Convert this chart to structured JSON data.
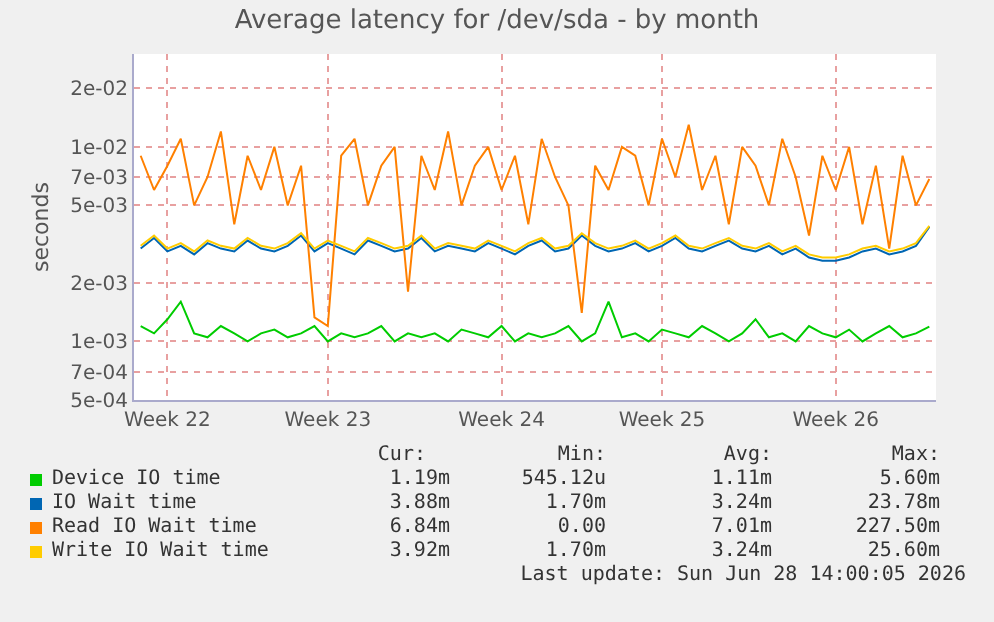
{
  "chart_data": {
    "type": "line",
    "title": "Average latency for /dev/sda - by month",
    "ylabel": "seconds",
    "log": "y",
    "grid": true,
    "line_style": "solid",
    "legend": "bottom",
    "categories": [
      null,
      null,
      "Week 22",
      null,
      null,
      null,
      null,
      null,
      null,
      null,
      null,
      null,
      null,
      null,
      "Week 23",
      null,
      null,
      null,
      null,
      null,
      null,
      null,
      null,
      null,
      null,
      null,
      null,
      "Week 24",
      null,
      null,
      null,
      null,
      null,
      null,
      null,
      null,
      null,
      null,
      null,
      "Week 25",
      null,
      null,
      null,
      null,
      null,
      null,
      null,
      null,
      null,
      null,
      null,
      null,
      "Week 26",
      null,
      null,
      null,
      null,
      null,
      null,
      null
    ],
    "ylim": [
      0.0005,
      0.03
    ],
    "yticks": [
      {
        "value": 0.0005,
        "label": "5e-04"
      },
      {
        "value": 0.0007,
        "label": "7e-04"
      },
      {
        "value": 0.001,
        "label": "1e-03"
      },
      {
        "value": 0.002,
        "label": "2e-03"
      },
      {
        "value": 0.005,
        "label": "5e-03"
      },
      {
        "value": 0.007,
        "label": "7e-03"
      },
      {
        "value": 0.01,
        "label": "1e-02"
      },
      {
        "value": 0.02,
        "label": "2e-02"
      }
    ],
    "series": [
      {
        "name": "Device IO time",
        "color": "#00cc00",
        "values": [
          0.0012,
          0.0011,
          0.0013,
          0.0016,
          0.0011,
          0.00105,
          0.0012,
          0.0011,
          0.001,
          0.0011,
          0.00115,
          0.00105,
          0.0011,
          0.0012,
          0.001,
          0.0011,
          0.00105,
          0.0011,
          0.0012,
          0.001,
          0.0011,
          0.00105,
          0.0011,
          0.001,
          0.00115,
          0.0011,
          0.00105,
          0.0012,
          0.001,
          0.0011,
          0.00105,
          0.0011,
          0.0012,
          0.001,
          0.0011,
          0.0016,
          0.00105,
          0.0011,
          0.001,
          0.00115,
          0.0011,
          0.00105,
          0.0012,
          0.0011,
          0.001,
          0.0011,
          0.0013,
          0.00105,
          0.0011,
          0.001,
          0.0012,
          0.0011,
          0.00105,
          0.00115,
          0.001,
          0.0011,
          0.0012,
          0.00105,
          0.0011,
          0.00119
        ]
      },
      {
        "name": "IO Wait time",
        "color": "#0066b3",
        "values": [
          0.003,
          0.0034,
          0.0029,
          0.0031,
          0.0028,
          0.0032,
          0.003,
          0.0029,
          0.0033,
          0.003,
          0.0029,
          0.0031,
          0.0035,
          0.0029,
          0.0032,
          0.003,
          0.0028,
          0.0033,
          0.0031,
          0.0029,
          0.003,
          0.0034,
          0.0029,
          0.0031,
          0.003,
          0.0029,
          0.0032,
          0.003,
          0.0028,
          0.0031,
          0.0033,
          0.0029,
          0.003,
          0.0035,
          0.0031,
          0.0029,
          0.003,
          0.0032,
          0.0029,
          0.0031,
          0.0034,
          0.003,
          0.0029,
          0.0031,
          0.0033,
          0.003,
          0.0029,
          0.0031,
          0.0028,
          0.003,
          0.0027,
          0.0026,
          0.0026,
          0.0027,
          0.0029,
          0.003,
          0.0028,
          0.0029,
          0.0031,
          0.00388
        ]
      },
      {
        "name": "Read IO Wait time",
        "color": "#ff8000",
        "values": [
          0.009,
          0.006,
          0.008,
          0.011,
          0.005,
          0.007,
          0.012,
          0.004,
          0.009,
          0.006,
          0.01,
          0.005,
          0.008,
          0.00133,
          0.0012,
          0.009,
          0.011,
          0.005,
          0.008,
          0.01,
          0.0018,
          0.009,
          0.006,
          0.012,
          0.005,
          0.008,
          0.01,
          0.006,
          0.009,
          0.004,
          0.011,
          0.007,
          0.005,
          0.0014,
          0.008,
          0.006,
          0.01,
          0.009,
          0.005,
          0.011,
          0.007,
          0.013,
          0.006,
          0.009,
          0.004,
          0.01,
          0.008,
          0.005,
          0.011,
          0.007,
          0.0035,
          0.009,
          0.006,
          0.01,
          0.004,
          0.008,
          0.003,
          0.009,
          0.005,
          0.00684
        ]
      },
      {
        "name": "Write IO Wait time",
        "color": "#ffcc00",
        "values": [
          0.0031,
          0.0035,
          0.003,
          0.0032,
          0.0029,
          0.0033,
          0.0031,
          0.003,
          0.0034,
          0.0031,
          0.003,
          0.0032,
          0.0036,
          0.003,
          0.0033,
          0.0031,
          0.0029,
          0.0034,
          0.0032,
          0.003,
          0.0031,
          0.0035,
          0.003,
          0.0032,
          0.0031,
          0.003,
          0.0033,
          0.0031,
          0.0029,
          0.0032,
          0.0034,
          0.003,
          0.0031,
          0.0036,
          0.0032,
          0.003,
          0.0031,
          0.0033,
          0.003,
          0.0032,
          0.0035,
          0.0031,
          0.003,
          0.0032,
          0.0034,
          0.0031,
          0.003,
          0.0032,
          0.0029,
          0.0031,
          0.0028,
          0.0027,
          0.0027,
          0.0028,
          0.003,
          0.0031,
          0.0029,
          0.003,
          0.0032,
          0.00392
        ]
      }
    ],
    "annotations": [
      "Cur:",
      "Min:",
      "Avg:",
      "Max:",
      "1.19m",
      "545.12u",
      "1.11m",
      "5.60m",
      "3.88m",
      "1.70m",
      "3.24m",
      "23.78m",
      "6.84m",
      "0.00",
      "7.01m",
      "227.50m",
      "3.92m",
      "1.70m",
      "3.24m",
      "25.60m",
      "Last update: Sun Jun 28 14:00:05 2026"
    ]
  }
}
